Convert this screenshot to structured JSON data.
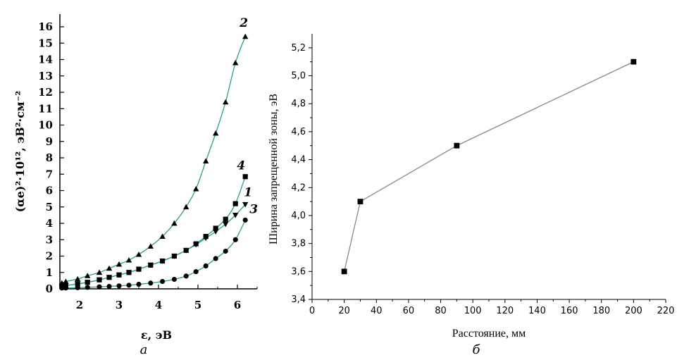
{
  "chart_data": [
    {
      "type": "line",
      "panel_label": "а",
      "xlabel": "ε, эВ",
      "ylabel": "(αe)²·10¹², эВ²·см⁻²",
      "xlim": [
        1.5,
        6.5
      ],
      "ylim": [
        0,
        16
      ],
      "x_ticks": [
        "2",
        "3",
        "4",
        "5",
        "6"
      ],
      "y_ticks": [
        "0",
        "1",
        "2",
        "3",
        "4",
        "5",
        "6",
        "7",
        "8",
        "9",
        "10",
        "11",
        "12",
        "13",
        "14",
        "15",
        "16"
      ],
      "fit_color": "#2a9d8f",
      "series": [
        {
          "name": "2",
          "marker": "triangle-up",
          "x": [
            1.55,
            1.65,
            1.95,
            2.2,
            2.5,
            2.75,
            3.0,
            3.25,
            3.5,
            3.8,
            4.1,
            4.4,
            4.7,
            4.95,
            5.2,
            5.45,
            5.7,
            5.95,
            6.2
          ],
          "y": [
            0.35,
            0.45,
            0.6,
            0.8,
            1.0,
            1.25,
            1.5,
            1.75,
            2.1,
            2.6,
            3.2,
            4.0,
            5.0,
            6.1,
            7.8,
            9.5,
            11.4,
            13.8,
            15.4
          ]
        },
        {
          "name": "4",
          "marker": "square",
          "x": [
            1.55,
            1.65,
            1.95,
            2.2,
            2.5,
            2.75,
            3.0,
            3.25,
            3.5,
            3.8,
            4.1,
            4.4,
            4.7,
            4.95,
            5.2,
            5.45,
            5.7,
            5.95,
            6.2
          ],
          "y": [
            0.15,
            0.2,
            0.3,
            0.4,
            0.55,
            0.7,
            0.85,
            1.0,
            1.2,
            1.45,
            1.7,
            2.0,
            2.35,
            2.75,
            3.2,
            3.7,
            4.25,
            5.2,
            6.85
          ]
        },
        {
          "name": "1",
          "marker": "triangle-down",
          "x": [
            1.55,
            1.65,
            1.95,
            2.2,
            2.5,
            2.75,
            3.0,
            3.25,
            3.5,
            3.8,
            4.1,
            4.4,
            4.7,
            4.95,
            5.2,
            5.45,
            5.7,
            5.95,
            6.2
          ],
          "y": [
            0.15,
            0.2,
            0.3,
            0.4,
            0.55,
            0.7,
            0.85,
            1.0,
            1.2,
            1.45,
            1.7,
            2.0,
            2.35,
            2.7,
            3.1,
            3.5,
            3.95,
            4.5,
            5.15
          ]
        },
        {
          "name": "3",
          "marker": "circle",
          "x": [
            1.55,
            1.65,
            1.95,
            2.2,
            2.5,
            2.75,
            3.0,
            3.25,
            3.5,
            3.8,
            4.1,
            4.4,
            4.7,
            4.95,
            5.2,
            5.45,
            5.7,
            5.95,
            6.2
          ],
          "y": [
            0.05,
            0.05,
            0.07,
            0.09,
            0.12,
            0.15,
            0.18,
            0.22,
            0.28,
            0.35,
            0.45,
            0.58,
            0.78,
            1.05,
            1.4,
            1.85,
            2.3,
            3.0,
            4.2
          ]
        }
      ]
    },
    {
      "type": "line",
      "panel_label": "б",
      "xlabel": "Расстояние, мм",
      "ylabel": "Ширина запрещенной зоны, эВ",
      "xlim": [
        0,
        220
      ],
      "ylim": [
        3.4,
        5.3
      ],
      "x_ticks": [
        "0",
        "20",
        "40",
        "60",
        "80",
        "100",
        "120",
        "140",
        "160",
        "180",
        "200",
        "220"
      ],
      "y_ticks": [
        "3,4",
        "3,6",
        "3,8",
        "4,0",
        "4,2",
        "4,4",
        "4,6",
        "4,8",
        "5,0",
        "5,2"
      ],
      "line_color": "#888888",
      "marker": "square",
      "x": [
        20,
        30,
        90,
        200
      ],
      "y": [
        3.6,
        4.1,
        4.5,
        5.1
      ]
    }
  ]
}
